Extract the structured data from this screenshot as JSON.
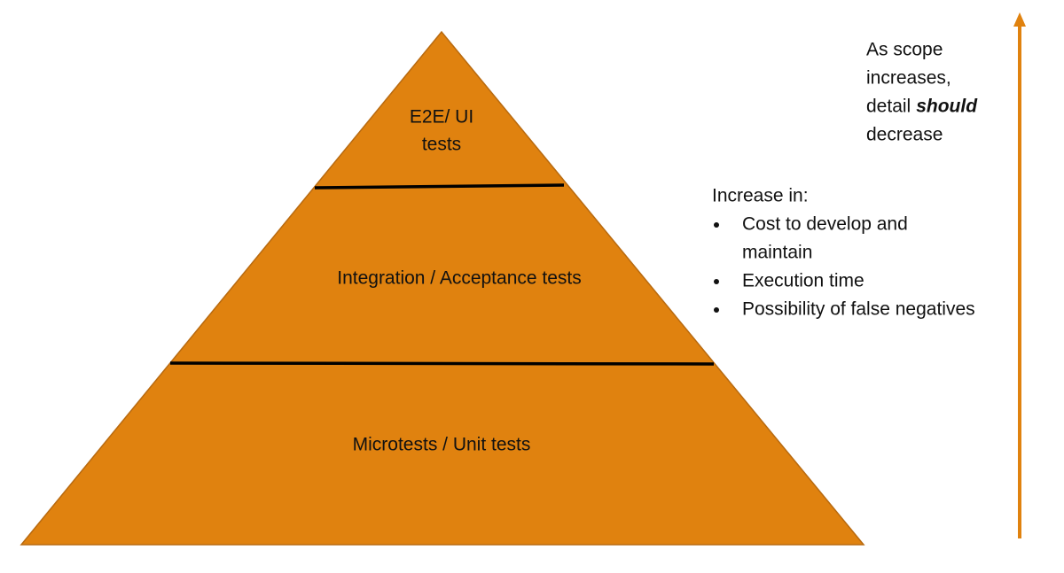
{
  "pyramid": {
    "layers": [
      {
        "label": [
          "E2E/ UI",
          "tests"
        ]
      },
      {
        "label": [
          "Integration / Acceptance tests"
        ]
      },
      {
        "label": [
          "Microtests / Unit tests"
        ]
      }
    ]
  },
  "side_list": {
    "heading": "Increase in:",
    "items": [
      [
        "Cost to develop and",
        "maintain"
      ],
      [
        "Execution time"
      ],
      [
        "Possibility of false negatives"
      ]
    ]
  },
  "scope_note": {
    "line1": "As scope",
    "line2": "increases,",
    "line3": "detail",
    "line3_emphasis": "should",
    "line4": "decrease"
  }
}
